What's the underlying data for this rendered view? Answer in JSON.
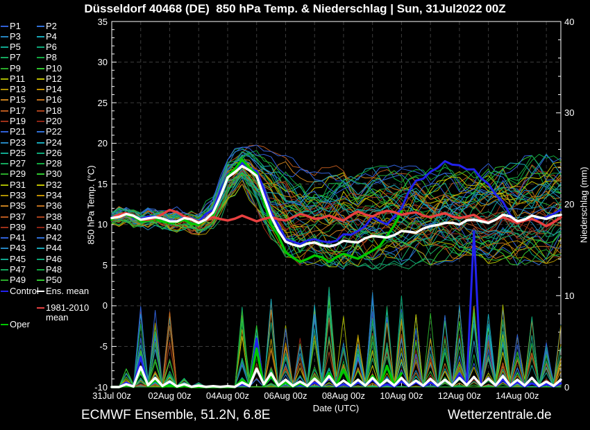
{
  "title": "Düsseldorf 40468 (DE)  850 hPa Temp. & Niederschlag | Sun, 31Jul2022 00Z",
  "footer": {
    "left": "ECMWF Ensemble, 51.2N, 6.8E",
    "right": "Wetterzentrale.de"
  },
  "colors": {
    "background": "#000000",
    "frame": "#ffffff",
    "grid": "#3c3c3c",
    "control": "#2222ee",
    "ens_mean": "#ffffff",
    "climate_mean": "#e84040",
    "oper": "#00c800",
    "member_palette": [
      "#3060d8",
      "#3070d8",
      "#2585c0",
      "#18a8b8",
      "#10a890",
      "#0da878",
      "#15a85e",
      "#12a840",
      "#2aaa2a",
      "#30c830",
      "#a8b800",
      "#c2c200",
      "#b09200",
      "#c29000",
      "#c8801e",
      "#c0701e",
      "#b8581e",
      "#ac421c",
      "#9e3018",
      "#8e2414"
    ]
  },
  "legend": {
    "members": [
      "P1",
      "P2",
      "P3",
      "P4",
      "P5",
      "P6",
      "P7",
      "P8",
      "P9",
      "P10",
      "P11",
      "P12",
      "P13",
      "P14",
      "P15",
      "P16",
      "P17",
      "P18",
      "P19",
      "P20",
      "P21",
      "P22",
      "P23",
      "P24",
      "P25",
      "P26",
      "P27",
      "P28",
      "P29",
      "P30",
      "P31",
      "P32",
      "P33",
      "P34",
      "P35",
      "P36",
      "P37",
      "P38",
      "P39",
      "P40",
      "P41",
      "P42",
      "P43",
      "P44",
      "P45",
      "P46",
      "P47",
      "P48",
      "P49",
      "P50"
    ],
    "control_label": "Control",
    "ens_mean_label": "Ens. mean",
    "climate_label_line1": "1981-2010",
    "climate_label_line2": "mean",
    "oper_label": "Oper"
  },
  "axes": {
    "left_title": "850 hPa Temp. (°C)",
    "right_title": "Niederschlag (mm)",
    "x_title": "Date (UTC)",
    "left_ticks": [
      "35",
      "30",
      "25",
      "20",
      "15",
      "10",
      "5",
      "0",
      "-5",
      "-10"
    ],
    "left_tick_values": [
      35,
      30,
      25,
      20,
      15,
      10,
      5,
      0,
      -5,
      -10
    ],
    "right_ticks": [
      "40",
      "30",
      "20",
      "10",
      "0"
    ],
    "right_tick_values": [
      40,
      30,
      20,
      10,
      0
    ],
    "x_ticks": [
      "31Jul 00z",
      "02Aug 00z",
      "04Aug 00z",
      "06Aug 00z",
      "08Aug 00z",
      "10Aug 00z",
      "12Aug 00z",
      "14Aug 00z"
    ],
    "x_tick_days": [
      0,
      2,
      4,
      6,
      8,
      10,
      12,
      14
    ],
    "temp_range": [
      -10,
      35
    ],
    "precip_range": [
      0,
      40
    ],
    "days_span": 15.5
  },
  "chart_data": {
    "type": "line",
    "description": "ECMWF ensemble meteogram: 50 perturbed members + control + operational + ensemble mean 850hPa temperature (°C, left axis) and 6-hourly precipitation spikes (mm, right axis) vs time; 1981-2010 climate mean temperature in red. Time axis 31Jul2022 00Z to 15Aug2022 12Z.",
    "step_hours": 12,
    "days_span": 15.5,
    "ens_mean_temp": [
      10.8,
      11.3,
      10.6,
      10.9,
      10.4,
      10.8,
      10.2,
      11.5,
      15.8,
      17.2,
      16.0,
      11.0,
      7.9,
      7.3,
      7.8,
      7.3,
      8.0,
      7.8,
      8.6,
      8.4,
      9.2,
      9.0,
      9.8,
      10.2,
      10.0,
      10.6,
      10.2,
      11.2,
      10.4,
      11.1,
      10.7,
      11.2
    ],
    "control_temp": [
      10.9,
      11.4,
      10.7,
      11.0,
      10.5,
      10.9,
      10.3,
      11.8,
      16.2,
      17.6,
      16.6,
      11.5,
      8.2,
      7.6,
      8.2,
      7.8,
      8.8,
      9.2,
      11.0,
      10.0,
      12.0,
      15.4,
      16.5,
      17.8,
      17.3,
      16.8,
      15.0,
      12.8,
      10.3,
      10.6,
      10.9,
      11.8
    ],
    "oper_temp": [
      10.6,
      11.2,
      10.4,
      10.7,
      10.2,
      10.6,
      10.0,
      11.2,
      16.0,
      18.0,
      16.2,
      10.0,
      6.6,
      5.4,
      6.2,
      5.4,
      6.4,
      5.8,
      6.8,
      8.6,
      11.6
    ],
    "climate_mean_temp": [
      10.8,
      11.4,
      10.6,
      10.8,
      11.8,
      11.0,
      10.3,
      10.9,
      10.5,
      11.1,
      10.4,
      10.9,
      10.5,
      11.3,
      10.7,
      11.1,
      10.5,
      11.6,
      11.0,
      11.7,
      11.2,
      11.5,
      10.9,
      11.4,
      10.8,
      11.2,
      10.3,
      10.9,
      10.2,
      10.7,
      9.8,
      10.9
    ],
    "ensemble_temp_min": [
      10.1,
      10.3,
      9.7,
      9.9,
      9.3,
      9.4,
      8.7,
      9.5,
      13.0,
      15.0,
      12.0,
      8.2,
      6.0,
      5.0,
      5.2,
      4.8,
      4.5,
      4.8,
      4.5,
      5.0,
      4.8,
      5.2,
      5.0,
      5.5,
      5.0,
      5.5,
      5.2,
      5.8,
      5.0,
      5.5,
      5.2,
      6.0
    ],
    "ensemble_temp_max": [
      11.6,
      12.2,
      11.6,
      11.9,
      11.7,
      11.5,
      11.3,
      13.5,
      18.0,
      19.6,
      19.8,
      19.0,
      18.5,
      17.0,
      16.5,
      17.0,
      18.0,
      16.5,
      17.0,
      17.2,
      17.0,
      17.2,
      17.0,
      17.5,
      17.2,
      17.3,
      17.8,
      18.2,
      17.5,
      18.5,
      18.8,
      19.0
    ],
    "ensemble_precip_max": [
      0.3,
      2,
      9.5,
      8.5,
      8.5,
      1.0,
      0.5,
      0.3,
      0.4,
      9,
      12,
      10,
      7,
      6,
      9,
      11,
      8,
      7,
      12,
      9,
      10,
      8,
      9,
      8,
      10,
      9,
      8,
      9,
      7,
      8,
      6,
      7
    ],
    "ens_mean_precip": [
      0,
      0.3,
      2.2,
      1.0,
      0.6,
      0.3,
      0.15,
      0.1,
      0.1,
      0.5,
      2.0,
      1.5,
      0.8,
      0.6,
      0.9,
      1.2,
      0.7,
      0.8,
      1.0,
      0.8,
      1.0,
      0.7,
      0.9,
      0.8,
      1.0,
      1.1,
      0.9,
      1.2,
      0.8,
      1.0,
      0.6,
      0.8
    ],
    "control_precip": [
      0,
      0.5,
      3.3,
      0.8,
      0.3,
      0.2,
      0,
      0,
      0,
      0.3,
      5.3,
      1.2,
      0.5,
      0.2,
      0.5,
      1.0,
      0.3,
      0.5,
      0.8,
      0.3,
      0.6,
      0.5,
      0.5,
      0.8,
      1.5,
      17,
      1.0,
      0.8,
      0.5,
      0.4,
      0.3,
      0.4
    ],
    "oper_precip": [
      0,
      0.2,
      1.9,
      0.8,
      0.2,
      0.1,
      0,
      0,
      0,
      0.8,
      4.2,
      1.2,
      0.5,
      0.4,
      1.0,
      1.5,
      1.9,
      0.8,
      1.2,
      2.3,
      1.5
    ]
  }
}
